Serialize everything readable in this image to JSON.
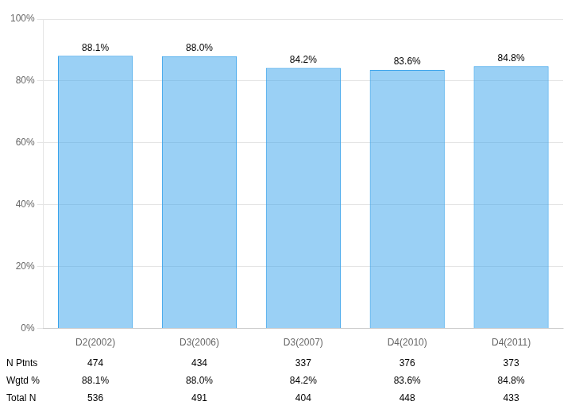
{
  "chart_data": {
    "type": "bar",
    "categories": [
      "D2(2002)",
      "D3(2006)",
      "D3(2007)",
      "D4(2010)",
      "D4(2011)"
    ],
    "values": [
      88.1,
      88.0,
      84.2,
      83.6,
      84.8
    ],
    "value_labels": [
      "88.1%",
      "88.0%",
      "84.2%",
      "83.6%",
      "84.8%"
    ],
    "data_labels": true,
    "ylim": [
      0,
      100
    ],
    "yticks": [
      {
        "value": 0,
        "label": "0%"
      },
      {
        "value": 20,
        "label": "20%"
      },
      {
        "value": 40,
        "label": "40%"
      },
      {
        "value": 60,
        "label": "60%"
      },
      {
        "value": 80,
        "label": "80%"
      },
      {
        "value": 100,
        "label": "100%"
      }
    ],
    "grid": true,
    "table": {
      "row_labels": [
        "N Ptnts",
        "Wgtd %",
        "Total N"
      ],
      "rows": [
        [
          "474",
          "434",
          "337",
          "376",
          "373"
        ],
        [
          "88.1%",
          "88.0%",
          "84.2%",
          "83.6%",
          "84.8%"
        ],
        [
          "536",
          "491",
          "404",
          "448",
          "433"
        ]
      ]
    }
  }
}
